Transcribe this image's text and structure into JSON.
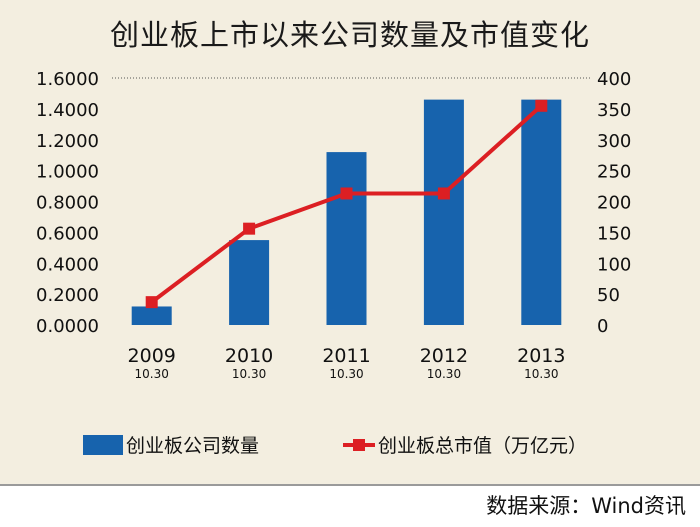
{
  "chart_data": {
    "type": "bar+line",
    "title": "创业板上市以来公司数量及市值变化",
    "categories": [
      "2009",
      "2010",
      "2011",
      "2012",
      "2013"
    ],
    "category_sublabels": [
      "10.30",
      "10.30",
      "10.30",
      "10.30",
      "10.30"
    ],
    "series": [
      {
        "name": "创业板公司数量",
        "type": "bar",
        "axis": "left",
        "color": "#1763ad",
        "values": [
          0.12,
          0.55,
          1.12,
          1.46,
          1.46
        ]
      },
      {
        "name": "创业板总市值（万亿元）",
        "type": "line",
        "axis": "right",
        "color": "#dc1f23",
        "values": [
          37,
          156,
          213,
          213,
          355
        ]
      }
    ],
    "y_left": {
      "ylim": [
        0,
        1.6
      ],
      "ticks": [
        "0.0000",
        "0.2000",
        "0.4000",
        "0.6000",
        "0.8000",
        "1.0000",
        "1.2000",
        "1.4000",
        "1.6000"
      ]
    },
    "y_right": {
      "ylim": [
        0,
        400
      ],
      "ticks": [
        "0",
        "50",
        "100",
        "150",
        "200",
        "250",
        "300",
        "350",
        "400"
      ]
    },
    "grid": "top dotted line only",
    "legend_position": "bottom"
  },
  "source": "数据来源：Wind资讯"
}
